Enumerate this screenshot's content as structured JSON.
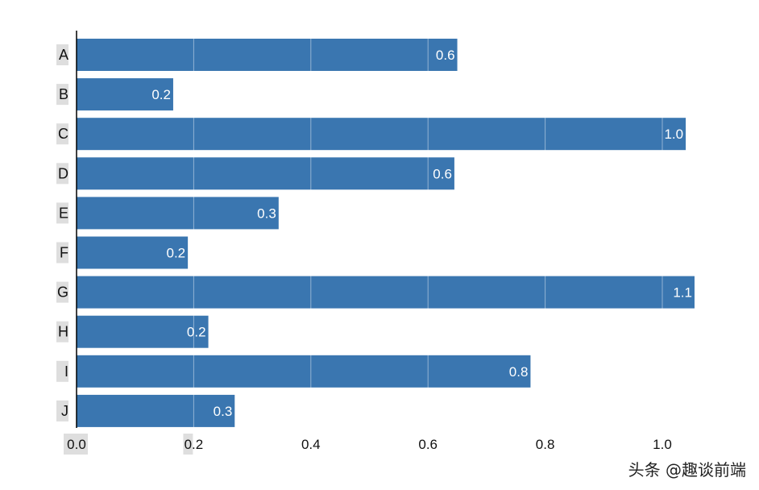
{
  "chart_data": {
    "type": "bar",
    "orientation": "horizontal",
    "categories": [
      "A",
      "B",
      "C",
      "D",
      "E",
      "F",
      "G",
      "H",
      "I",
      "J"
    ],
    "values": [
      0.65,
      0.165,
      1.04,
      0.645,
      0.345,
      0.19,
      1.055,
      0.225,
      0.775,
      0.27
    ],
    "data_labels": [
      "0.6",
      "0.2",
      "1.0",
      "0.6",
      "0.3",
      "0.2",
      "1.1",
      "0.2",
      "0.8",
      "0.3"
    ],
    "x_ticks": [
      "0.0",
      "0.2",
      "0.4",
      "0.6",
      "0.8",
      "1.0"
    ],
    "xlim": [
      0,
      1.2
    ],
    "title": "",
    "xlabel": "",
    "ylabel": "",
    "grid": "vertical",
    "legend": "none",
    "bar_color": "#3a76b0"
  },
  "watermark": "头条 @趣谈前端"
}
